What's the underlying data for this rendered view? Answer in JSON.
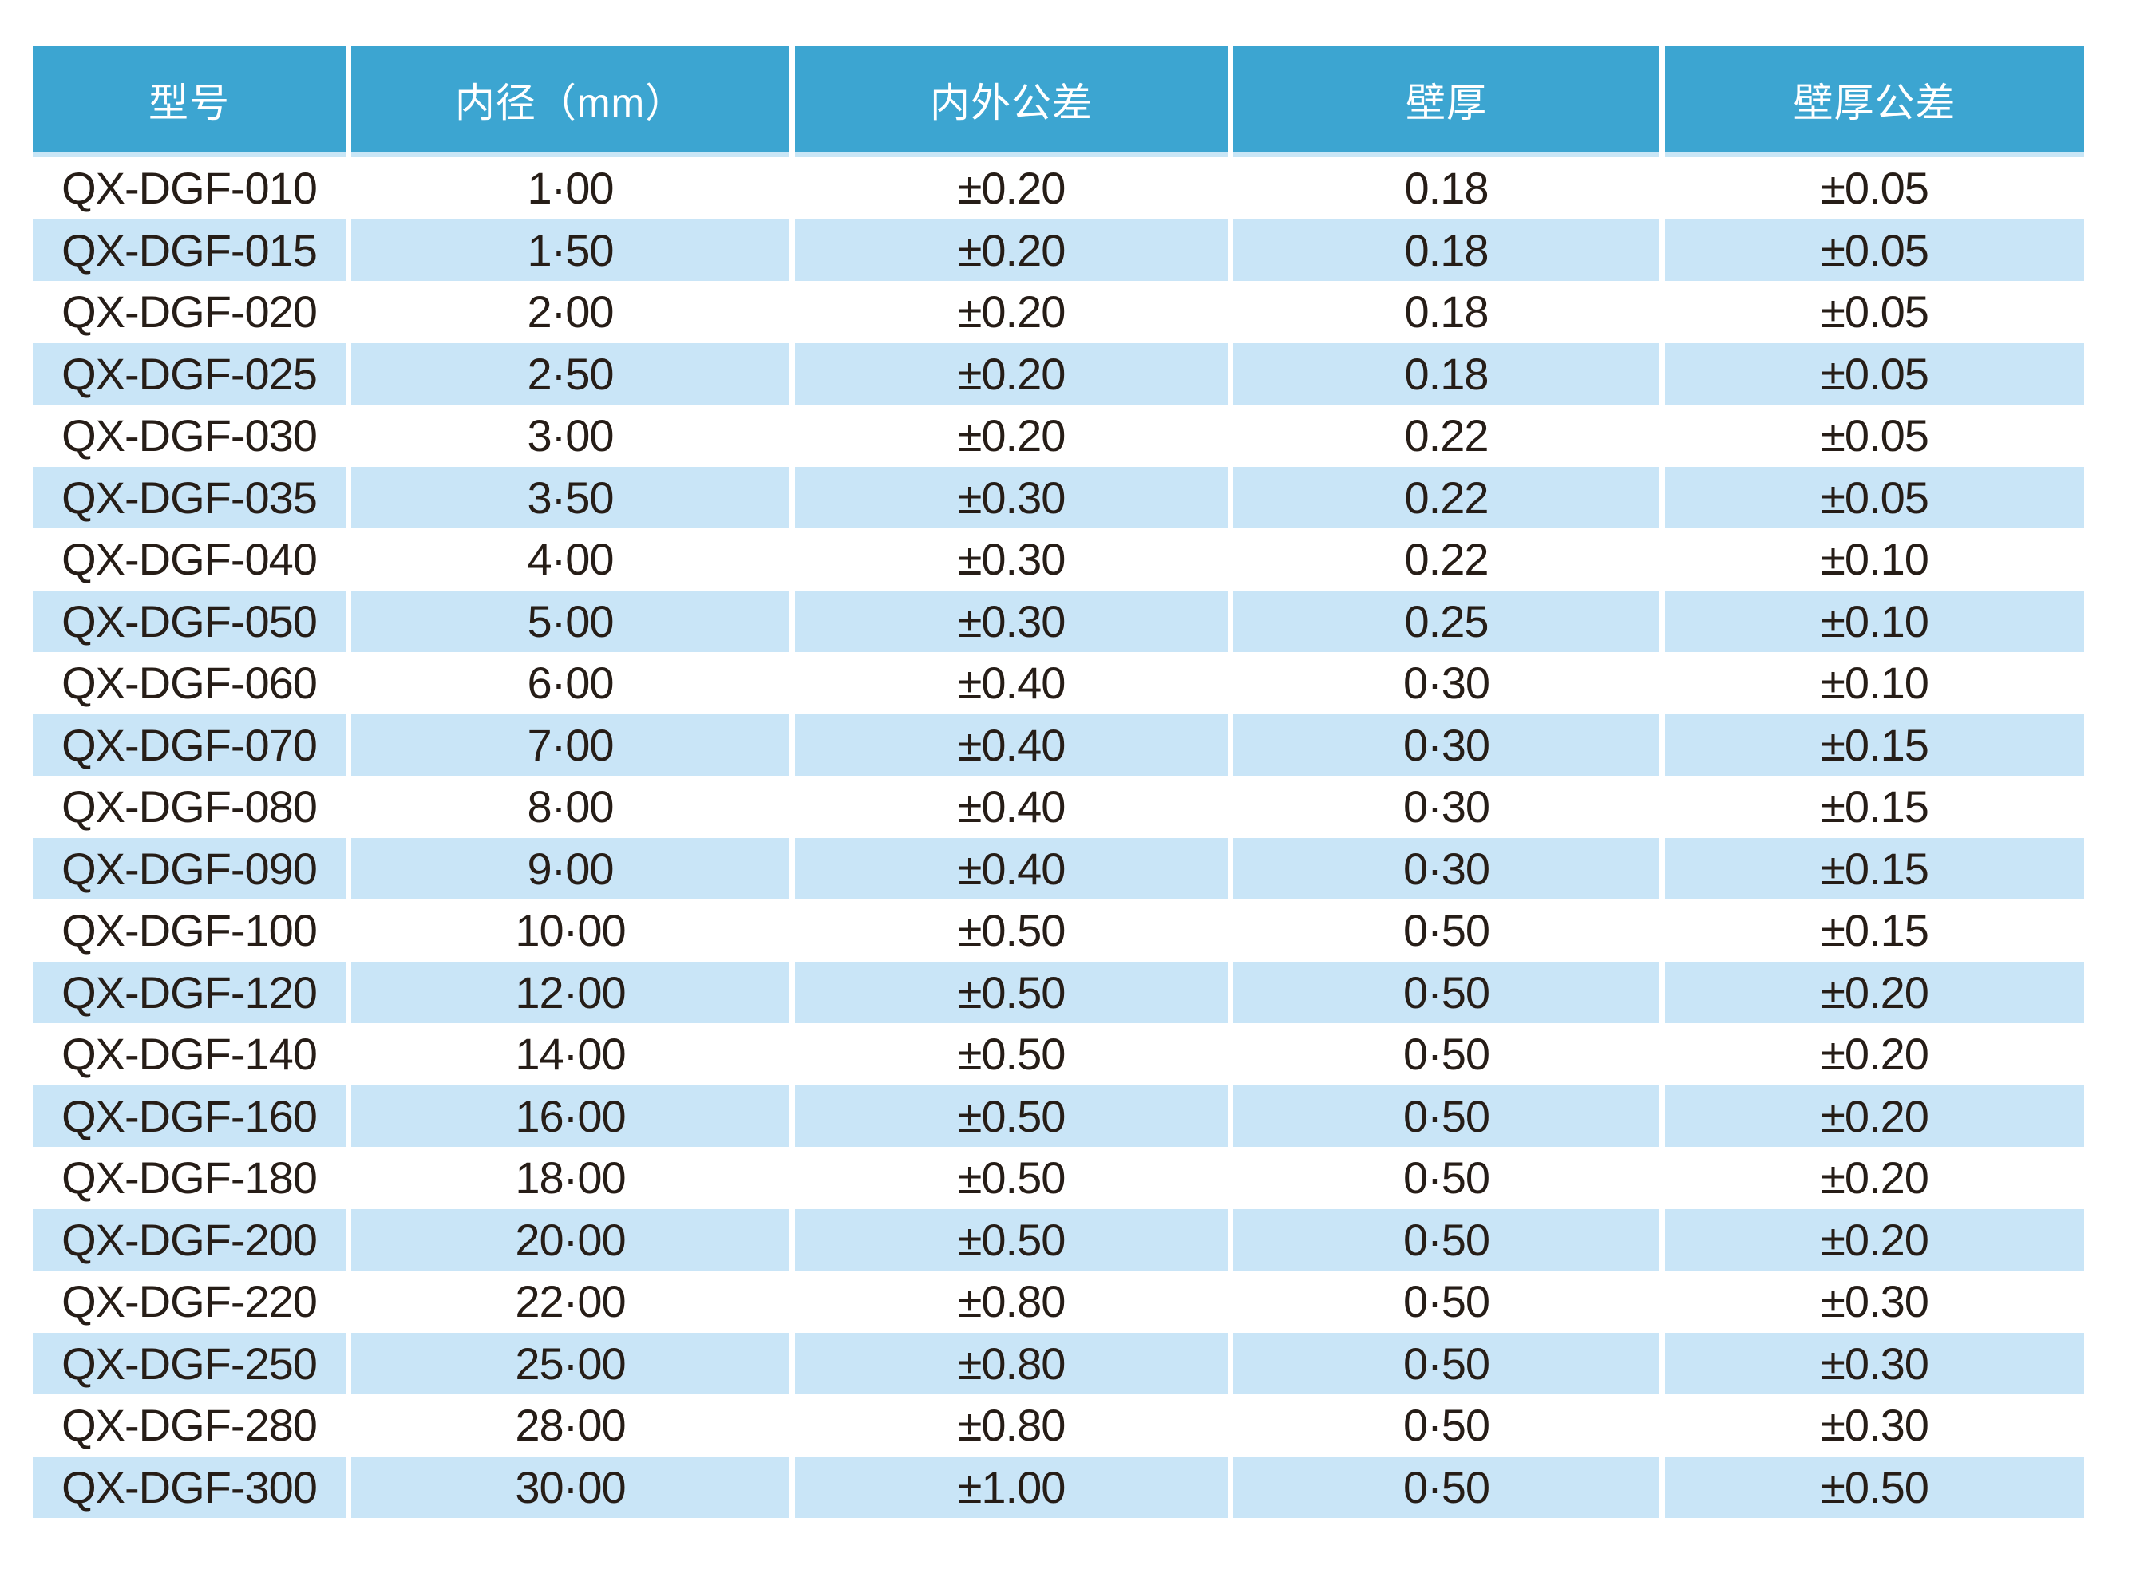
{
  "page": {
    "background": "#FFFFFF"
  },
  "table": {
    "headers": [
      "型号",
      "内径（mm）",
      "内外公差",
      "壁厚",
      "壁厚公差"
    ],
    "rows": [
      [
        "QX-DGF-010",
        "1·00",
        "±0.20",
        "0.18",
        "±0.05"
      ],
      [
        "QX-DGF-015",
        "1·50",
        "±0.20",
        "0.18",
        "±0.05"
      ],
      [
        "QX-DGF-020",
        "2·00",
        "±0.20",
        "0.18",
        "±0.05"
      ],
      [
        "QX-DGF-025",
        "2·50",
        "±0.20",
        "0.18",
        "±0.05"
      ],
      [
        "QX-DGF-030",
        "3·00",
        "±0.20",
        "0.22",
        "±0.05"
      ],
      [
        "QX-DGF-035",
        "3·50",
        "±0.30",
        "0.22",
        "±0.05"
      ],
      [
        "QX-DGF-040",
        "4·00",
        "±0.30",
        "0.22",
        "±0.10"
      ],
      [
        "QX-DGF-050",
        "5·00",
        "±0.30",
        "0.25",
        "±0.10"
      ],
      [
        "QX-DGF-060",
        "6·00",
        "±0.40",
        "0·30",
        "±0.10"
      ],
      [
        "QX-DGF-070",
        "7·00",
        "±0.40",
        "0·30",
        "±0.15"
      ],
      [
        "QX-DGF-080",
        "8·00",
        "±0.40",
        "0·30",
        "±0.15"
      ],
      [
        "QX-DGF-090",
        "9·00",
        "±0.40",
        "0·30",
        "±0.15"
      ],
      [
        "QX-DGF-100",
        "10·00",
        "±0.50",
        "0·50",
        "±0.15"
      ],
      [
        "QX-DGF-120",
        "12·00",
        "±0.50",
        "0·50",
        "±0.20"
      ],
      [
        "QX-DGF-140",
        "14·00",
        "±0.50",
        "0·50",
        "±0.20"
      ],
      [
        "QX-DGF-160",
        "16·00",
        "±0.50",
        "0·50",
        "±0.20"
      ],
      [
        "QX-DGF-180",
        "18·00",
        "±0.50",
        "0·50",
        "±0.20"
      ],
      [
        "QX-DGF-200",
        "20·00",
        "±0.50",
        "0·50",
        "±0.20"
      ],
      [
        "QX-DGF-220",
        "22·00",
        "±0.80",
        "0·50",
        "±0.30"
      ],
      [
        "QX-DGF-250",
        "25·00",
        "±0.80",
        "0·50",
        "±0.30"
      ],
      [
        "QX-DGF-280",
        "28·00",
        "±0.80",
        "0·50",
        "±0.30"
      ],
      [
        "QX-DGF-300",
        "30·00",
        "±1.00",
        "0·50",
        "±0.50"
      ]
    ],
    "colors": {
      "header_bg": "#3CA5D1",
      "header_text": "#FFFFFF",
      "header_edge": "#C9E6F6",
      "stripe_bg": "#C9E5F7",
      "body_text": "#261D17"
    }
  }
}
